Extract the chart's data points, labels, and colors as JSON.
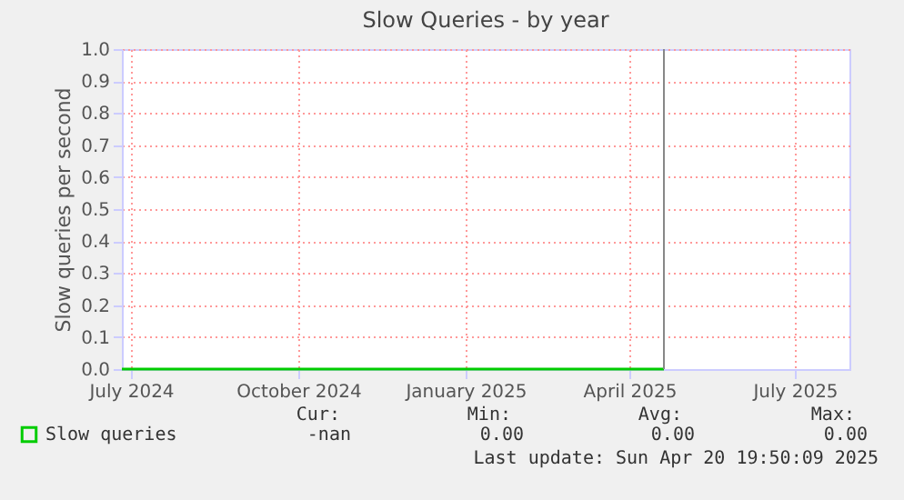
{
  "chart_data": {
    "type": "line",
    "title": "Slow Queries - by year",
    "ylabel": "Slow queries per second",
    "x": [
      "2024-06-26",
      "2024-08-01",
      "2024-10-01",
      "2025-01-01",
      "2025-03-01",
      "2025-04-20"
    ],
    "series": [
      {
        "name": "Slow queries",
        "color": "#00cc00",
        "values": [
          0,
          0,
          0,
          0,
          0,
          0
        ]
      }
    ],
    "xlim": [
      "2024-06-26",
      "2025-07-31"
    ],
    "xticks": [
      {
        "value": "2024-07-01",
        "label": "July 2024"
      },
      {
        "value": "2024-10-01",
        "label": "October 2024"
      },
      {
        "value": "2025-01-01",
        "label": "January 2025"
      },
      {
        "value": "2025-04-01",
        "label": "April 2025"
      },
      {
        "value": "2025-07-01",
        "label": "July 2025"
      }
    ],
    "ylim": [
      0,
      1
    ],
    "yticks": [
      {
        "value": 0,
        "label": "0.0"
      },
      0.1,
      0.2,
      0.3,
      0.4,
      0.5,
      0.6,
      0.7,
      0.8,
      0.9,
      {
        "value": 1,
        "label": "1.0"
      }
    ],
    "grid": true,
    "legend": "bottom left",
    "marker": "none",
    "line_style": "solid",
    "ref_lines": [
      {
        "axis": "x",
        "value": "2025-04-20",
        "color": "#888888"
      }
    ],
    "annotations": [
      "Cur:",
      "Min:",
      "Avg:",
      "Max:",
      "-nan",
      "0.00",
      "0.00",
      "0.00",
      "Last update: Sun Apr 20 19:50:09 2025"
    ]
  }
}
